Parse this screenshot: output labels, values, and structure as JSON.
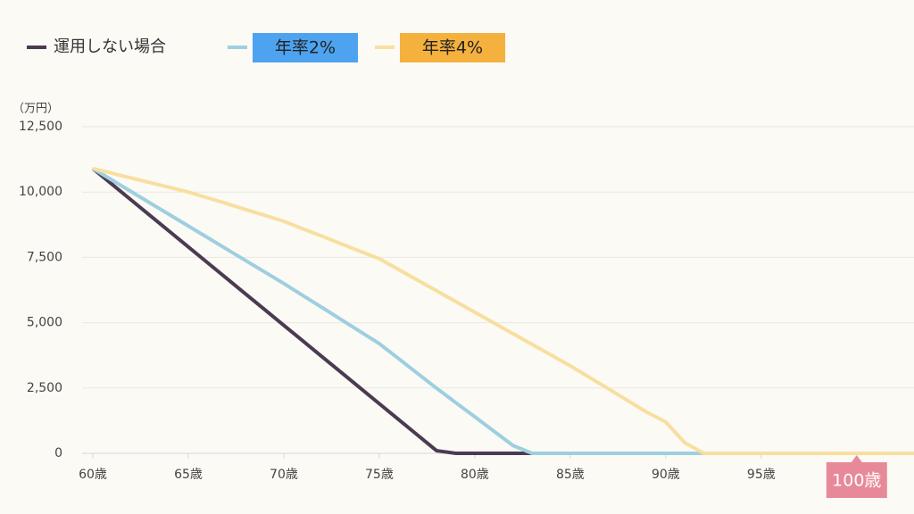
{
  "chart_data": {
    "type": "line",
    "y_unit_label": "（万円）",
    "x": [
      60,
      61,
      62,
      63,
      64,
      65,
      66,
      67,
      68,
      69,
      70,
      71,
      72,
      73,
      74,
      75,
      76,
      77,
      78,
      79,
      80,
      81,
      82,
      83,
      84,
      85,
      86,
      87,
      88,
      89,
      90,
      91,
      92,
      93,
      94,
      95,
      96,
      97,
      98,
      99,
      100,
      101,
      102,
      103
    ],
    "series": [
      {
        "name": "運用しない場合",
        "color": "#4a3b52",
        "values": [
          10900,
          10300,
          9700,
          9100,
          8500,
          7900,
          7300,
          6700,
          6100,
          5500,
          4900,
          4300,
          3700,
          3100,
          2500,
          1900,
          1300,
          700,
          100,
          0,
          0,
          0,
          0,
          0,
          0,
          0,
          0,
          0,
          0,
          0,
          0,
          0,
          0,
          0,
          0,
          0,
          0,
          0,
          0,
          0,
          0,
          0,
          0,
          0
        ]
      },
      {
        "name": "年率2%",
        "color": "#9ecfe0",
        "legend_box": "#4da3f0",
        "values": [
          10900,
          10460,
          10020,
          9580,
          9140,
          8700,
          8260,
          7820,
          7380,
          6940,
          6500,
          6040,
          5580,
          5120,
          4660,
          4200,
          3630,
          3060,
          2490,
          1940,
          1400,
          850,
          300,
          0,
          0,
          0,
          0,
          0,
          0,
          0,
          0,
          0,
          0,
          0,
          0,
          0,
          0,
          0,
          0,
          0,
          0,
          0,
          0,
          0
        ]
      },
      {
        "name": "年率4%",
        "color": "#f7dfa0",
        "legend_box": "#f5b13d",
        "values": [
          10900,
          10720,
          10540,
          10360,
          10180,
          10000,
          9780,
          9560,
          9330,
          9110,
          8880,
          8590,
          8310,
          8020,
          7730,
          7450,
          7040,
          6630,
          6220,
          5810,
          5400,
          4990,
          4580,
          4170,
          3760,
          3350,
          2910,
          2470,
          2020,
          1580,
          1200,
          400,
          0,
          0,
          0,
          0,
          0,
          0,
          0,
          0,
          0,
          0,
          0,
          0
        ]
      }
    ],
    "xlim": [
      60,
      103
    ],
    "ylim": [
      0,
      12500
    ],
    "xticks": [
      {
        "value": 60,
        "label": "60歳"
      },
      {
        "value": 65,
        "label": "65歳"
      },
      {
        "value": 70,
        "label": "70歳"
      },
      {
        "value": 75,
        "label": "75歳"
      },
      {
        "value": 80,
        "label": "80歳"
      },
      {
        "value": 85,
        "label": "85歳"
      },
      {
        "value": 90,
        "label": "90歳"
      },
      {
        "value": 95,
        "label": "95歳"
      }
    ],
    "yticks": [
      0,
      {
        "value": 2500,
        "label": "2,500"
      },
      {
        "value": 5000,
        "label": "5,000"
      },
      {
        "value": 7500,
        "label": "7,500"
      },
      {
        "value": 10000,
        "label": "10,000"
      },
      {
        "value": 12500,
        "label": "12,500"
      }
    ],
    "grid": true,
    "annotations": [
      {
        "text": "100歳",
        "x": 100,
        "color": "#e8899a"
      }
    ]
  }
}
